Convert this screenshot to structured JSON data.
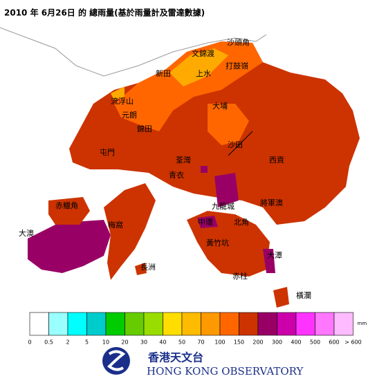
{
  "title": "2010 年  6月26日 的 總雨量(基於雨量計及雷達數據)",
  "places": [
    "沙頭角",
    "文錦渡",
    "打鼓嶺",
    "新田",
    "上水",
    "流浮山",
    "元朗",
    "大埔",
    "錦田",
    "屯門",
    "沙田",
    "西貢",
    "荃灣",
    "青衣",
    "赤鱲角",
    "九龍城",
    "將軍澳",
    "梅窩",
    "中環",
    "北角",
    "大澳",
    "黃竹坑",
    "大潭",
    "長洲",
    "赤柱",
    "橫瀾"
  ],
  "legend": {
    "unit": "mm",
    "colors": [
      "#ffffff",
      "#99ffff",
      "#00ffff",
      "#00cccc",
      "#00cc00",
      "#66cc00",
      "#99dd00",
      "#ffdd00",
      "#ffbb00",
      "#ff9900",
      "#ff6600",
      "#cc3300",
      "#990066",
      "#cc00aa",
      "#ff33ff",
      "#ff77ff",
      "#ffbbff"
    ],
    "labels": [
      "0",
      "0.5",
      "2",
      "5",
      "10",
      "20",
      "30",
      "40",
      "50",
      "70",
      "100",
      "150",
      "200",
      "300",
      "400",
      "500",
      "600",
      "> 600"
    ]
  },
  "logo": {
    "chinese": "香港天文台",
    "english": "HONG KONG OBSERVATORY"
  }
}
